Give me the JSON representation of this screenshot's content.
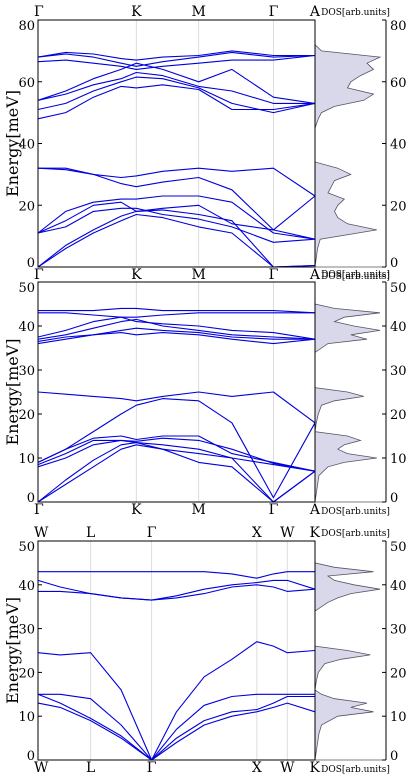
{
  "colors": {
    "band": "#0000dd",
    "dos_fill": "#d8d8ea",
    "dos_line": "#555566",
    "frame": "#000000",
    "grid": "#dddddd"
  },
  "chart_data": [
    {
      "type": "line",
      "ylabel": "Energy[meV]",
      "ylim": [
        0,
        80
      ],
      "yticks": [
        "0",
        "20",
        "40",
        "60",
        "80"
      ],
      "kpath_top": [
        "Γ",
        "K",
        "M",
        "Γ",
        "A"
      ],
      "kpath_bottom": [
        "Γ",
        "K",
        "M",
        "Γ",
        "A"
      ],
      "kpos": [
        0,
        0.355,
        0.58,
        0.85,
        1.0
      ],
      "dos_label": "DOS[arb.units]",
      "series": [
        {
          "x": [
            0,
            0.1,
            0.2,
            0.3,
            0.355,
            0.45,
            0.58,
            0.7,
            0.85,
            1.0
          ],
          "y": [
            0,
            6,
            11,
            15,
            17,
            16,
            13,
            11,
            0,
            0.5
          ]
        },
        {
          "x": [
            0,
            0.1,
            0.2,
            0.3,
            0.355,
            0.45,
            0.58,
            0.7,
            0.85,
            1.0
          ],
          "y": [
            0,
            7,
            12,
            16.5,
            18,
            18.5,
            17,
            15,
            0,
            0.5
          ]
        },
        {
          "x": [
            0,
            0.1,
            0.2,
            0.3,
            0.355,
            0.45,
            0.58,
            0.7,
            0.85,
            1.0
          ],
          "y": [
            11,
            13,
            18,
            19,
            19,
            17,
            15.5,
            13,
            8,
            9
          ]
        },
        {
          "x": [
            0,
            0.1,
            0.2,
            0.3,
            0.355,
            0.45,
            0.58,
            0.7,
            0.85,
            1.0
          ],
          "y": [
            11,
            15,
            20,
            21,
            18,
            19,
            20,
            14,
            12,
            9
          ]
        },
        {
          "x": [
            0,
            0.1,
            0.2,
            0.3,
            0.355,
            0.45,
            0.58,
            0.7,
            0.85,
            1.0
          ],
          "y": [
            11,
            18,
            21,
            22,
            22,
            23,
            23,
            21,
            11,
            9
          ]
        },
        {
          "x": [
            0,
            0.1,
            0.2,
            0.3,
            0.355,
            0.45,
            0.58,
            0.7,
            0.85,
            1.0
          ],
          "y": [
            32,
            32,
            30,
            29,
            29.5,
            31,
            32,
            31,
            32,
            23
          ]
        },
        {
          "x": [
            0,
            0.1,
            0.2,
            0.3,
            0.355,
            0.45,
            0.58,
            0.7,
            0.85,
            1.0
          ],
          "y": [
            32,
            31.5,
            30,
            27,
            26,
            27.5,
            29,
            25,
            12,
            23
          ]
        },
        {
          "x": [
            0,
            0.1,
            0.2,
            0.3,
            0.355,
            0.45,
            0.58,
            0.7,
            0.85,
            1.0
          ],
          "y": [
            48,
            50,
            55,
            58.5,
            58,
            59,
            57.5,
            51,
            51,
            53
          ]
        },
        {
          "x": [
            0,
            0.1,
            0.2,
            0.3,
            0.355,
            0.45,
            0.58,
            0.7,
            0.85,
            1.0
          ],
          "y": [
            51,
            53,
            57,
            60,
            61.5,
            61,
            58,
            53,
            50,
            53
          ]
        },
        {
          "x": [
            0,
            0.1,
            0.2,
            0.3,
            0.355,
            0.45,
            0.58,
            0.7,
            0.85,
            1.0
          ],
          "y": [
            54,
            56,
            59,
            61,
            63,
            62,
            58.5,
            57,
            53,
            53
          ]
        },
        {
          "x": [
            0,
            0.1,
            0.2,
            0.3,
            0.355,
            0.45,
            0.58,
            0.7,
            0.85,
            1.0
          ],
          "y": [
            54,
            57,
            61,
            64,
            66,
            64,
            60,
            64,
            55,
            53
          ]
        },
        {
          "x": [
            0,
            0.1,
            0.2,
            0.3,
            0.355,
            0.45,
            0.58,
            0.7,
            0.85,
            1.0
          ],
          "y": [
            66.5,
            67,
            66,
            65,
            64,
            65,
            66,
            67,
            67,
            68.5
          ]
        },
        {
          "x": [
            0,
            0.1,
            0.2,
            0.3,
            0.355,
            0.45,
            0.58,
            0.7,
            0.85,
            1.0
          ],
          "y": [
            68,
            69,
            68,
            66,
            65,
            66.5,
            68,
            69.5,
            68,
            68.5
          ]
        },
        {
          "x": [
            0,
            0.1,
            0.2,
            0.3,
            0.355,
            0.45,
            0.58,
            0.7,
            0.85,
            1.0
          ],
          "y": [
            68,
            69.5,
            69,
            67.5,
            67,
            68,
            68.5,
            70,
            68.5,
            68.5
          ]
        }
      ],
      "dos": {
        "e": [
          0,
          3,
          6,
          9,
          12,
          14,
          16,
          18,
          20,
          22,
          24,
          26,
          28,
          30,
          32,
          34,
          40,
          45,
          48,
          50,
          52,
          54,
          56,
          58,
          60,
          62,
          64,
          66,
          68,
          70,
          72,
          80
        ],
        "v": [
          0,
          0.02,
          0.04,
          0.08,
          0.95,
          0.5,
          0.35,
          0.3,
          0.35,
          0.45,
          0.2,
          0.25,
          0.3,
          0.55,
          0.35,
          0,
          0,
          0,
          0.05,
          0.1,
          0.3,
          0.75,
          0.9,
          0.5,
          0.55,
          0.7,
          0.9,
          0.8,
          1.0,
          0.1,
          0,
          0
        ]
      }
    },
    {
      "type": "line",
      "ylabel": "Energy[meV]",
      "ylim": [
        0,
        50
      ],
      "yticks": [
        "0",
        "10",
        "20",
        "30",
        "40",
        "50"
      ],
      "kpath_top": [],
      "kpath_bottom": [
        "Γ",
        "K",
        "M",
        "Γ",
        "A"
      ],
      "kpos": [
        0,
        0.355,
        0.58,
        0.85,
        1.0
      ],
      "dos_label": "DOS[arb.units]",
      "series": [
        {
          "x": [
            0,
            0.1,
            0.2,
            0.3,
            0.355,
            0.45,
            0.58,
            0.7,
            0.85,
            1.0
          ],
          "y": [
            0,
            4,
            8,
            12,
            13,
            12,
            9,
            8,
            0,
            7
          ]
        },
        {
          "x": [
            0,
            0.1,
            0.2,
            0.3,
            0.355,
            0.45,
            0.58,
            0.7,
            0.85,
            1.0
          ],
          "y": [
            0,
            5,
            9.5,
            13,
            13.5,
            13,
            12,
            10,
            0,
            7
          ]
        },
        {
          "x": [
            0,
            0.1,
            0.2,
            0.3,
            0.355,
            0.45,
            0.58,
            0.7,
            0.85,
            1.0
          ],
          "y": [
            8,
            10,
            13,
            14,
            13.5,
            12,
            11,
            10,
            8.5,
            7
          ]
        },
        {
          "x": [
            0,
            0.1,
            0.2,
            0.3,
            0.355,
            0.45,
            0.58,
            0.7,
            0.85,
            1.0
          ],
          "y": [
            8.5,
            11,
            14,
            14,
            13.8,
            14.5,
            14,
            12,
            8.8,
            7
          ]
        },
        {
          "x": [
            0,
            0.1,
            0.2,
            0.3,
            0.355,
            0.45,
            0.58,
            0.7,
            0.85,
            1.0
          ],
          "y": [
            9,
            12,
            14.5,
            15,
            14.2,
            15,
            15,
            11,
            9,
            7
          ]
        },
        {
          "x": [
            0,
            0.1,
            0.2,
            0.3,
            0.355,
            0.45,
            0.58,
            0.7,
            0.85,
            1.0
          ],
          "y": [
            25,
            24.5,
            24,
            23.5,
            23,
            24,
            25,
            24,
            25,
            18
          ]
        },
        {
          "x": [
            0,
            0.1,
            0.2,
            0.3,
            0.355,
            0.45,
            0.58,
            0.7,
            0.85,
            1.0
          ],
          "y": [
            9,
            12,
            16,
            20,
            22,
            23.5,
            23,
            18,
            1,
            18
          ]
        },
        {
          "x": [
            0,
            0.1,
            0.2,
            0.3,
            0.355,
            0.45,
            0.58,
            0.7,
            0.85,
            1.0
          ],
          "y": [
            36,
            37,
            38,
            38.5,
            38,
            38.5,
            38,
            37,
            36,
            37
          ]
        },
        {
          "x": [
            0,
            0.1,
            0.2,
            0.3,
            0.355,
            0.45,
            0.58,
            0.7,
            0.85,
            1.0
          ],
          "y": [
            36.5,
            37.5,
            38,
            39,
            39.5,
            39,
            38.5,
            37.5,
            37,
            37
          ]
        },
        {
          "x": [
            0,
            0.1,
            0.2,
            0.3,
            0.355,
            0.45,
            0.58,
            0.7,
            0.85,
            1.0
          ],
          "y": [
            37,
            38,
            39.5,
            41,
            41.5,
            40,
            39,
            38,
            37.5,
            37
          ]
        },
        {
          "x": [
            0,
            0.1,
            0.2,
            0.3,
            0.355,
            0.45,
            0.58,
            0.7,
            0.85,
            1.0
          ],
          "y": [
            37.5,
            39,
            41,
            42,
            41,
            40.5,
            40,
            39,
            38.5,
            37
          ]
        },
        {
          "x": [
            0,
            0.1,
            0.2,
            0.3,
            0.355,
            0.45,
            0.58,
            0.7,
            0.85,
            1.0
          ],
          "y": [
            43,
            43,
            42.5,
            42,
            42,
            42.5,
            43,
            43,
            43,
            43
          ]
        },
        {
          "x": [
            0,
            0.1,
            0.2,
            0.3,
            0.355,
            0.45,
            0.58,
            0.7,
            0.85,
            1.0
          ],
          "y": [
            43.5,
            43.5,
            43.5,
            44,
            44,
            43.5,
            43.5,
            43.5,
            43.5,
            43
          ]
        }
      ],
      "dos": {
        "e": [
          0,
          2,
          4,
          6,
          8,
          9,
          10,
          11,
          12,
          13,
          14,
          15,
          16,
          18,
          20,
          22,
          23,
          24,
          25,
          26,
          30,
          34,
          36,
          37,
          38,
          39,
          40,
          41,
          42,
          43,
          44,
          45,
          50
        ],
        "v": [
          0,
          0.02,
          0.04,
          0.06,
          0.2,
          0.45,
          0.95,
          0.5,
          0.35,
          0.45,
          0.7,
          0.5,
          0,
          0.02,
          0.05,
          0.1,
          0.3,
          0.75,
          0.5,
          0,
          0,
          0,
          0.2,
          0.8,
          0.55,
          1.0,
          0.6,
          0.3,
          0.45,
          1.0,
          0.3,
          0,
          0
        ]
      }
    },
    {
      "type": "line",
      "ylabel": "Energy[meV]",
      "ylim": [
        0,
        50
      ],
      "yticks": [
        "0",
        "10",
        "20",
        "30",
        "40",
        "50"
      ],
      "kpath_top": [
        "W",
        "L",
        "Γ",
        "X",
        "W",
        "K"
      ],
      "kpath_bottom": [
        "W",
        "L",
        "Γ",
        "X",
        "W",
        "K"
      ],
      "kpos": [
        0,
        0.19,
        0.41,
        0.79,
        0.9,
        1.0
      ],
      "dos_label": "DOS[arb.units]",
      "series": [
        {
          "x": [
            0,
            0.08,
            0.19,
            0.3,
            0.41,
            0.5,
            0.6,
            0.7,
            0.79,
            0.85,
            0.9,
            1.0
          ],
          "y": [
            13,
            12,
            9,
            5,
            0,
            4,
            8,
            10,
            11,
            12,
            13,
            11
          ]
        },
        {
          "x": [
            0,
            0.08,
            0.19,
            0.3,
            0.41,
            0.5,
            0.6,
            0.7,
            0.79,
            0.85,
            0.9,
            1.0
          ],
          "y": [
            15,
            13,
            9.5,
            5.5,
            0,
            5,
            9,
            11,
            11.5,
            13,
            14.5,
            14.5
          ]
        },
        {
          "x": [
            0,
            0.08,
            0.19,
            0.3,
            0.41,
            0.5,
            0.6,
            0.7,
            0.79,
            0.85,
            0.9,
            1.0
          ],
          "y": [
            15,
            15,
            14,
            8,
            0,
            7,
            12.5,
            14.5,
            15,
            15,
            15,
            15
          ]
        },
        {
          "x": [
            0,
            0.08,
            0.19,
            0.3,
            0.41,
            0.5,
            0.6,
            0.7,
            0.79,
            0.85,
            0.9,
            1.0
          ],
          "y": [
            24.5,
            24,
            24.5,
            16,
            0,
            11,
            19,
            23,
            27,
            26,
            24.5,
            25
          ]
        },
        {
          "x": [
            0,
            0.08,
            0.19,
            0.3,
            0.41,
            0.5,
            0.6,
            0.7,
            0.79,
            0.85,
            0.9,
            1.0
          ],
          "y": [
            38.5,
            38.5,
            38,
            37,
            36.5,
            37,
            38,
            39.5,
            40,
            39.5,
            38.5,
            39
          ]
        },
        {
          "x": [
            0,
            0.08,
            0.19,
            0.3,
            0.41,
            0.5,
            0.6,
            0.7,
            0.79,
            0.85,
            0.9,
            1.0
          ],
          "y": [
            41,
            39.5,
            38,
            37,
            36.5,
            37.5,
            39,
            40,
            40.5,
            41,
            41,
            39
          ]
        },
        {
          "x": [
            0,
            0.08,
            0.19,
            0.3,
            0.41,
            0.5,
            0.6,
            0.7,
            0.79,
            0.85,
            0.9,
            1.0
          ],
          "y": [
            43,
            43,
            43,
            43,
            43,
            43,
            43,
            42.5,
            41.5,
            42.5,
            43,
            43
          ]
        }
      ],
      "dos": {
        "e": [
          0,
          2,
          4,
          6,
          8,
          10,
          11,
          12,
          13,
          14,
          15,
          16,
          18,
          20,
          22,
          23,
          24,
          25,
          26,
          30,
          34,
          36,
          37,
          38,
          39,
          40,
          41,
          42,
          43,
          44,
          45,
          50
        ],
        "v": [
          0,
          0.02,
          0.04,
          0.06,
          0.1,
          0.35,
          0.9,
          0.55,
          0.8,
          0.3,
          0.1,
          0,
          0.02,
          0.05,
          0.15,
          0.4,
          0.85,
          0.5,
          0,
          0,
          0,
          0.2,
          0.35,
          0.55,
          1.0,
          0.6,
          0.3,
          0.2,
          0.9,
          0.3,
          0,
          0
        ]
      }
    }
  ]
}
